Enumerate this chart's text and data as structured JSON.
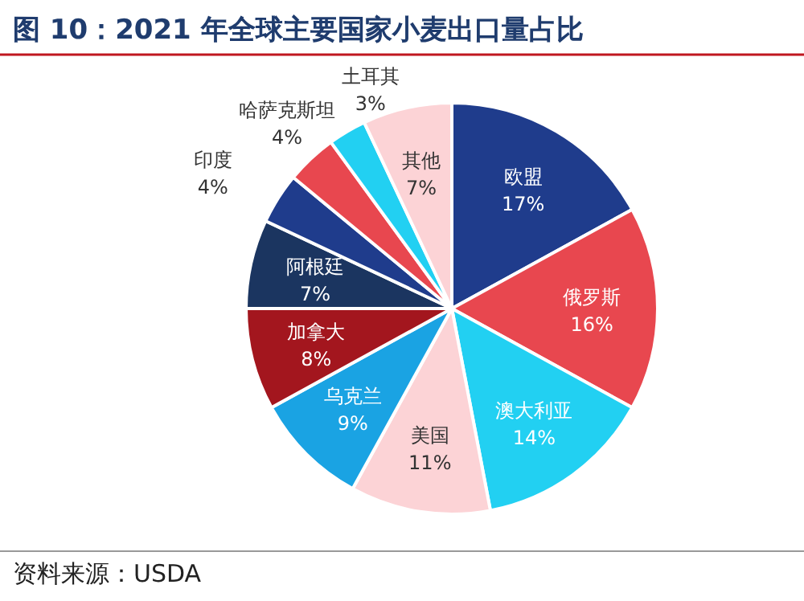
{
  "chart_data": {
    "type": "pie",
    "title": "图 10：2021 年全球主要国家小麦出口量占比",
    "categories": [
      "欧盟",
      "俄罗斯",
      "澳大利亚",
      "美国",
      "乌克兰",
      "加拿大",
      "阿根廷",
      "印度",
      "哈萨克斯坦",
      "土耳其",
      "其他"
    ],
    "values": [
      17,
      16,
      14,
      11,
      9,
      8,
      7,
      4,
      4,
      3,
      7
    ],
    "colors": [
      "#1f3c8c",
      "#e8474f",
      "#22d0f2",
      "#fcd3d6",
      "#1aa3e3",
      "#a3161e",
      "#1b3560",
      "#1f3c8c",
      "#e8474f",
      "#22d0f2",
      "#fcd3d6"
    ],
    "value_labels": [
      "17%",
      "16%",
      "14%",
      "11%",
      "9%",
      "8%",
      "7%",
      "4%",
      "4%",
      "3%",
      "7%"
    ],
    "annotations": [
      "资料来源：USDA"
    ]
  }
}
